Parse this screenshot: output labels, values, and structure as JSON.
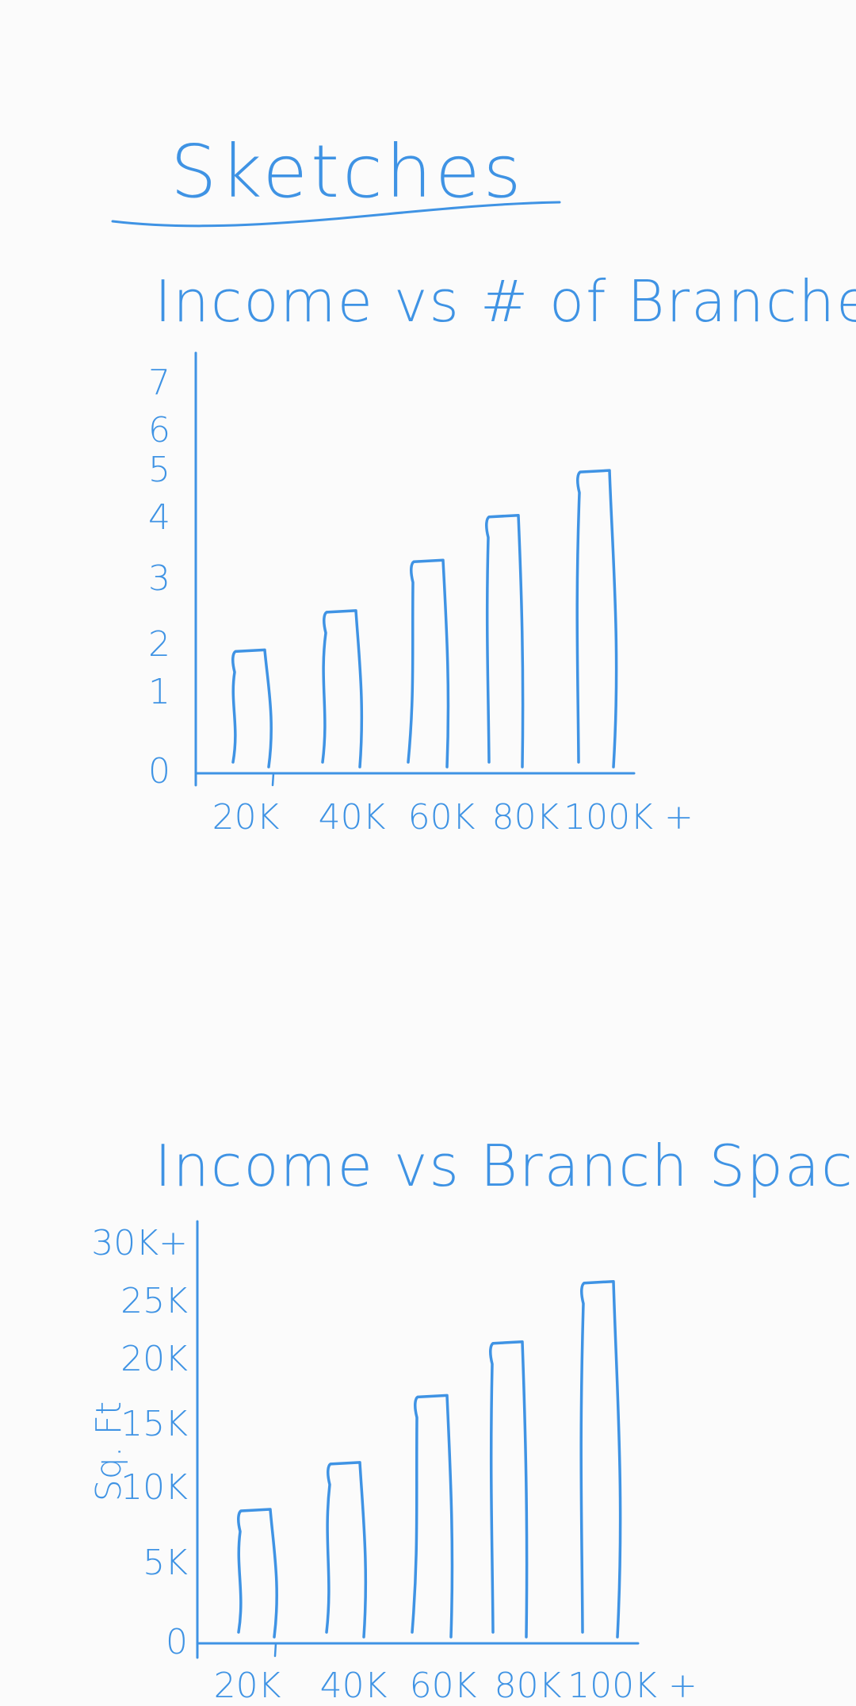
{
  "page": {
    "title": "Sketches",
    "ink_color": "#3f93e4",
    "background": "#fbfbfb"
  },
  "chart_data": [
    {
      "type": "bar",
      "title": "Income vs # of Branches",
      "xlabel": "",
      "ylabel": "",
      "categories": [
        "20K",
        "40K",
        "60K",
        "80K",
        "100K +"
      ],
      "values": [
        2.2,
        2.9,
        3.8,
        4.6,
        5.4
      ],
      "yticks": [
        "0",
        "1",
        "2",
        "3",
        "4",
        "5",
        "6",
        "7"
      ],
      "ylim": [
        0,
        7
      ],
      "grid": false,
      "legend": "none"
    },
    {
      "type": "bar",
      "title": "Income vs Branch Space",
      "xlabel": "",
      "ylabel": "Sq. Ft",
      "categories": [
        "20K",
        "40K",
        "60K",
        "80K",
        "100K +"
      ],
      "values": [
        10000,
        13500,
        18500,
        22500,
        27000
      ],
      "yticks": [
        "0",
        "5K",
        "10K",
        "15K",
        "20K",
        "25K",
        "30K+"
      ],
      "ylim": [
        0,
        30000
      ],
      "grid": false,
      "legend": "none"
    }
  ]
}
